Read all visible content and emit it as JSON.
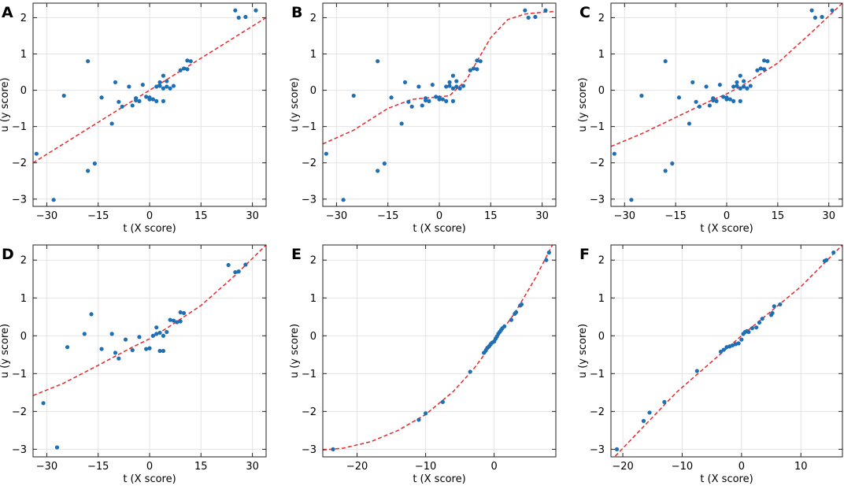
{
  "chart_data": [
    {
      "panel": "A",
      "type": "scatter",
      "xlabel": "t (X score)",
      "ylabel": "u (y score)",
      "xlim": [
        -34,
        34
      ],
      "ylim": [
        -3.2,
        2.4
      ],
      "xticks": [
        -30,
        -15,
        0,
        15,
        30
      ],
      "yticks": [
        -3,
        -2,
        -1,
        0,
        1,
        2
      ],
      "tick_labels_x": [
        "−30",
        "−15",
        "0",
        "15",
        "30"
      ],
      "tick_labels_y": [
        "−3",
        "−2",
        "−1",
        "0",
        "1",
        "2"
      ],
      "fit_type": "linear",
      "fit_line": [
        [
          -34,
          -2.0
        ],
        [
          34,
          2.0
        ]
      ],
      "points": [
        [
          -33,
          -1.75
        ],
        [
          -28,
          -3.02
        ],
        [
          -25,
          -0.15
        ],
        [
          -18,
          0.8
        ],
        [
          -18,
          -2.22
        ],
        [
          -16,
          -2.02
        ],
        [
          -14,
          -0.2
        ],
        [
          -11,
          -0.92
        ],
        [
          -10,
          0.22
        ],
        [
          -9,
          -0.32
        ],
        [
          -8,
          -0.45
        ],
        [
          -6,
          0.1
        ],
        [
          -5,
          -0.42
        ],
        [
          -4,
          -0.22
        ],
        [
          -4,
          -0.28
        ],
        [
          -3,
          -0.3
        ],
        [
          -2,
          0.15
        ],
        [
          -1,
          -0.18
        ],
        [
          0,
          -0.2
        ],
        [
          0,
          -0.25
        ],
        [
          1,
          -0.25
        ],
        [
          2,
          -0.3
        ],
        [
          2,
          0.1
        ],
        [
          3,
          0.12
        ],
        [
          3,
          0.22
        ],
        [
          4,
          -0.3
        ],
        [
          4,
          0.4
        ],
        [
          4,
          0.05
        ],
        [
          5,
          0.25
        ],
        [
          5,
          0.1
        ],
        [
          6,
          0.05
        ],
        [
          7,
          0.12
        ],
        [
          9,
          0.55
        ],
        [
          10,
          0.6
        ],
        [
          11,
          0.58
        ],
        [
          11,
          0.82
        ],
        [
          12,
          0.8
        ],
        [
          25,
          2.2
        ],
        [
          26,
          2.0
        ],
        [
          28,
          2.02
        ],
        [
          31,
          2.2
        ]
      ]
    },
    {
      "panel": "B",
      "type": "scatter",
      "xlabel": "t (X score)",
      "ylabel": "u (y score)",
      "xlim": [
        -34,
        34
      ],
      "ylim": [
        -3.2,
        2.4
      ],
      "xticks": [
        -30,
        -15,
        0,
        15,
        30
      ],
      "yticks": [
        -3,
        -2,
        -1,
        0,
        1,
        2
      ],
      "tick_labels_x": [
        "−30",
        "−15",
        "0",
        "15",
        "30"
      ],
      "tick_labels_y": [
        "−3",
        "−2",
        "−1",
        "0",
        "1",
        "2"
      ],
      "fit_type": "sigmoid",
      "fit_line": [
        [
          -34,
          -1.48
        ],
        [
          -25,
          -1.1
        ],
        [
          -15,
          -0.5
        ],
        [
          -8,
          -0.25
        ],
        [
          -2,
          -0.2
        ],
        [
          3,
          -0.15
        ],
        [
          8,
          0.3
        ],
        [
          11,
          0.8
        ],
        [
          15,
          1.45
        ],
        [
          20,
          1.95
        ],
        [
          25,
          2.1
        ],
        [
          30,
          2.15
        ],
        [
          34,
          2.17
        ]
      ],
      "points": [
        [
          -33,
          -1.75
        ],
        [
          -28,
          -3.02
        ],
        [
          -25,
          -0.15
        ],
        [
          -18,
          0.8
        ],
        [
          -18,
          -2.22
        ],
        [
          -16,
          -2.02
        ],
        [
          -14,
          -0.2
        ],
        [
          -11,
          -0.92
        ],
        [
          -10,
          0.22
        ],
        [
          -9,
          -0.32
        ],
        [
          -8,
          -0.45
        ],
        [
          -6,
          0.1
        ],
        [
          -5,
          -0.42
        ],
        [
          -4,
          -0.22
        ],
        [
          -4,
          -0.28
        ],
        [
          -3,
          -0.3
        ],
        [
          -2,
          0.15
        ],
        [
          -1,
          -0.18
        ],
        [
          0,
          -0.2
        ],
        [
          0,
          -0.25
        ],
        [
          1,
          -0.25
        ],
        [
          2,
          -0.3
        ],
        [
          2,
          0.1
        ],
        [
          3,
          0.12
        ],
        [
          3,
          0.22
        ],
        [
          4,
          -0.3
        ],
        [
          4,
          0.4
        ],
        [
          4,
          0.05
        ],
        [
          5,
          0.25
        ],
        [
          5,
          0.1
        ],
        [
          6,
          0.05
        ],
        [
          7,
          0.12
        ],
        [
          9,
          0.55
        ],
        [
          10,
          0.6
        ],
        [
          11,
          0.58
        ],
        [
          11,
          0.82
        ],
        [
          12,
          0.8
        ],
        [
          25,
          2.2
        ],
        [
          26,
          2.0
        ],
        [
          28,
          2.02
        ],
        [
          31,
          2.2
        ]
      ]
    },
    {
      "panel": "C",
      "type": "scatter",
      "xlabel": "t (X score)",
      "ylabel": "u (y score)",
      "xlim": [
        -34,
        34
      ],
      "ylim": [
        -3.2,
        2.4
      ],
      "xticks": [
        -30,
        -15,
        0,
        15,
        30
      ],
      "yticks": [
        -3,
        -2,
        -1,
        0,
        1,
        2
      ],
      "tick_labels_x": [
        "−30",
        "−15",
        "0",
        "15",
        "30"
      ],
      "tick_labels_y": [
        "−3",
        "−2",
        "−1",
        "0",
        "1",
        "2"
      ],
      "fit_type": "quadratic",
      "fit_line": [
        [
          -34,
          -1.55
        ],
        [
          -25,
          -1.2
        ],
        [
          -15,
          -0.75
        ],
        [
          -5,
          -0.3
        ],
        [
          0,
          -0.1
        ],
        [
          5,
          0.15
        ],
        [
          15,
          0.75
        ],
        [
          25,
          1.6
        ],
        [
          34,
          2.4
        ]
      ],
      "points": [
        [
          -33,
          -1.75
        ],
        [
          -28,
          -3.02
        ],
        [
          -25,
          -0.15
        ],
        [
          -18,
          0.8
        ],
        [
          -18,
          -2.22
        ],
        [
          -16,
          -2.02
        ],
        [
          -14,
          -0.2
        ],
        [
          -11,
          -0.92
        ],
        [
          -10,
          0.22
        ],
        [
          -9,
          -0.32
        ],
        [
          -8,
          -0.45
        ],
        [
          -6,
          0.1
        ],
        [
          -5,
          -0.42
        ],
        [
          -4,
          -0.22
        ],
        [
          -4,
          -0.28
        ],
        [
          -3,
          -0.3
        ],
        [
          -2,
          0.15
        ],
        [
          -1,
          -0.18
        ],
        [
          0,
          -0.2
        ],
        [
          0,
          -0.25
        ],
        [
          1,
          -0.25
        ],
        [
          2,
          -0.3
        ],
        [
          2,
          0.1
        ],
        [
          3,
          0.12
        ],
        [
          3,
          0.22
        ],
        [
          4,
          -0.3
        ],
        [
          4,
          0.4
        ],
        [
          4,
          0.05
        ],
        [
          5,
          0.25
        ],
        [
          5,
          0.1
        ],
        [
          6,
          0.05
        ],
        [
          7,
          0.12
        ],
        [
          9,
          0.55
        ],
        [
          10,
          0.6
        ],
        [
          11,
          0.58
        ],
        [
          11,
          0.82
        ],
        [
          12,
          0.8
        ],
        [
          25,
          2.2
        ],
        [
          26,
          2.0
        ],
        [
          28,
          2.02
        ],
        [
          31,
          2.2
        ]
      ]
    },
    {
      "panel": "D",
      "type": "scatter",
      "xlabel": "t (X score)",
      "ylabel": "u (y score)",
      "xlim": [
        -34,
        34
      ],
      "ylim": [
        -3.2,
        2.4
      ],
      "xticks": [
        -30,
        -15,
        0,
        15,
        30
      ],
      "yticks": [
        -3,
        -2,
        -1,
        0,
        1,
        2
      ],
      "tick_labels_x": [
        "−30",
        "−15",
        "0",
        "15",
        "30"
      ],
      "tick_labels_y": [
        "−3",
        "−2",
        "−1",
        "0",
        "1",
        "2"
      ],
      "fit_type": "quadratic",
      "fit_line": [
        [
          -34,
          -1.58
        ],
        [
          -25,
          -1.25
        ],
        [
          -15,
          -0.78
        ],
        [
          -5,
          -0.3
        ],
        [
          0,
          -0.08
        ],
        [
          5,
          0.2
        ],
        [
          15,
          0.8
        ],
        [
          25,
          1.6
        ],
        [
          34,
          2.4
        ]
      ],
      "points": [
        [
          -31,
          -1.78
        ],
        [
          -27,
          -2.95
        ],
        [
          -24,
          -0.3
        ],
        [
          -19,
          0.05
        ],
        [
          -17,
          0.57
        ],
        [
          -14,
          -0.35
        ],
        [
          -11,
          0.05
        ],
        [
          -10,
          -0.45
        ],
        [
          -9,
          -0.6
        ],
        [
          -7,
          -0.1
        ],
        [
          -5,
          -0.38
        ],
        [
          -3,
          -0.03
        ],
        [
          -1,
          -0.35
        ],
        [
          0,
          -0.33
        ],
        [
          1,
          0.0
        ],
        [
          2,
          0.05
        ],
        [
          2,
          0.22
        ],
        [
          3,
          -0.4
        ],
        [
          3,
          0.08
        ],
        [
          4,
          -0.4
        ],
        [
          4,
          0.0
        ],
        [
          5,
          0.1
        ],
        [
          6,
          0.42
        ],
        [
          7,
          0.4
        ],
        [
          8,
          0.36
        ],
        [
          9,
          0.38
        ],
        [
          9,
          0.62
        ],
        [
          10,
          0.6
        ],
        [
          23,
          1.87
        ],
        [
          25,
          1.68
        ],
        [
          26,
          1.7
        ],
        [
          28,
          1.88
        ]
      ]
    },
    {
      "panel": "E",
      "type": "scatter",
      "xlabel": "t (X score)",
      "ylabel": "u (y score)",
      "xlim": [
        -25,
        9
      ],
      "ylim": [
        -3.2,
        2.4
      ],
      "xticks": [
        -20,
        -10,
        0
      ],
      "yticks": [
        -3,
        -2,
        -1,
        0,
        1,
        2
      ],
      "tick_labels_x": [
        "−20",
        "−10",
        "0"
      ],
      "tick_labels_y": [
        "−3",
        "−2",
        "−1",
        "0",
        "1",
        "2"
      ],
      "fit_type": "quadratic",
      "fit_line": [
        [
          -25,
          -3.02
        ],
        [
          -22,
          -2.97
        ],
        [
          -18,
          -2.8
        ],
        [
          -14,
          -2.5
        ],
        [
          -10,
          -2.08
        ],
        [
          -6,
          -1.48
        ],
        [
          -3,
          -0.88
        ],
        [
          0,
          -0.15
        ],
        [
          3,
          0.6
        ],
        [
          6,
          1.52
        ],
        [
          8.5,
          2.4
        ]
      ],
      "points": [
        [
          -23.5,
          -3.0
        ],
        [
          -11,
          -2.22
        ],
        [
          -10,
          -2.05
        ],
        [
          -7.5,
          -1.75
        ],
        [
          -3.5,
          -0.95
        ],
        [
          -1.5,
          -0.45
        ],
        [
          -1.2,
          -0.38
        ],
        [
          -1,
          -0.32
        ],
        [
          -0.7,
          -0.27
        ],
        [
          -0.5,
          -0.22
        ],
        [
          -0.3,
          -0.18
        ],
        [
          0,
          -0.15
        ],
        [
          0.2,
          -0.08
        ],
        [
          0.4,
          -0.02
        ],
        [
          0.6,
          0.05
        ],
        [
          0.8,
          0.1
        ],
        [
          1,
          0.15
        ],
        [
          1.2,
          0.2
        ],
        [
          1.5,
          0.25
        ],
        [
          2.5,
          0.42
        ],
        [
          3,
          0.58
        ],
        [
          3.2,
          0.62
        ],
        [
          3.8,
          0.8
        ],
        [
          4,
          0.83
        ],
        [
          7.6,
          2.0
        ],
        [
          8,
          2.2
        ]
      ]
    },
    {
      "panel": "F",
      "type": "scatter",
      "xlabel": "t (X score)",
      "ylabel": "u (y score)",
      "xlim": [
        -22,
        17
      ],
      "ylim": [
        -3.2,
        2.4
      ],
      "xticks": [
        -20,
        -10,
        0,
        10
      ],
      "yticks": [
        -3,
        -2,
        -1,
        0,
        1,
        2
      ],
      "tick_labels_x": [
        "−20",
        "−10",
        "0",
        "10"
      ],
      "tick_labels_y": [
        "−3",
        "−2",
        "−1",
        "0",
        "1",
        "2"
      ],
      "fit_type": "linear",
      "fit_line": [
        [
          -22,
          -3.3
        ],
        [
          -11,
          -1.5
        ],
        [
          0,
          0.0
        ],
        [
          10,
          1.3
        ],
        [
          17,
          2.4
        ]
      ],
      "points": [
        [
          -21,
          -3.0
        ],
        [
          -16.5,
          -2.25
        ],
        [
          -15.5,
          -2.03
        ],
        [
          -13,
          -1.75
        ],
        [
          -7.5,
          -0.93
        ],
        [
          -3.5,
          -0.42
        ],
        [
          -3,
          -0.37
        ],
        [
          -2.5,
          -0.3
        ],
        [
          -2,
          -0.28
        ],
        [
          -1.5,
          -0.25
        ],
        [
          -1,
          -0.22
        ],
        [
          -0.5,
          -0.2
        ],
        [
          0,
          -0.1
        ],
        [
          0.3,
          0.05
        ],
        [
          0.6,
          0.1
        ],
        [
          0.9,
          0.12
        ],
        [
          1.2,
          0.1
        ],
        [
          1.8,
          0.2
        ],
        [
          2.5,
          0.22
        ],
        [
          3,
          0.35
        ],
        [
          3.5,
          0.45
        ],
        [
          5,
          0.55
        ],
        [
          5.2,
          0.6
        ],
        [
          5.5,
          0.78
        ],
        [
          6.5,
          0.83
        ],
        [
          14,
          1.98
        ],
        [
          14.3,
          2.0
        ],
        [
          15.5,
          2.2
        ]
      ]
    }
  ]
}
